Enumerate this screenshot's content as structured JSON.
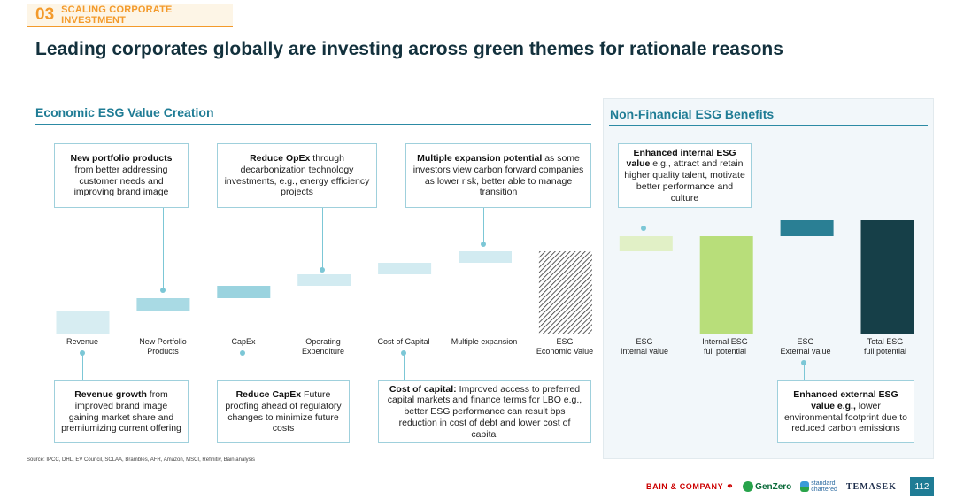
{
  "header": {
    "section_number": "03",
    "section_label": "SCALING CORPORATE INVESTMENT",
    "title": "Leading corporates globally are investing across green themes for rationale reasons"
  },
  "left_panel": {
    "heading": "Economic ESG Value Creation"
  },
  "right_panel": {
    "heading": "Non-Financial ESG Benefits"
  },
  "callouts_top": [
    {
      "bold": "New portfolio products",
      "text": " from better addressing customer needs and improving brand image"
    },
    {
      "bold": "Reduce OpEx",
      "text": " through decarbonization technology investments, e.g., energy efficiency projects"
    },
    {
      "bold": "Multiple expansion potential",
      "text": " as some investors view carbon forward companies as lower risk, better able to manage transition"
    },
    {
      "bold": "Enhanced internal ESG value",
      "text": " e.g., attract and retain higher quality talent, motivate better performance and culture"
    }
  ],
  "callouts_bottom": [
    {
      "bold": "Revenue growth",
      "text": " from improved brand image gaining market share and premiumizing current offering"
    },
    {
      "bold": "Reduce CapEx",
      "text": " Future proofing ahead of regulatory changes to minimize future costs"
    },
    {
      "bold": "Cost of capital:",
      "text": " Improved access to preferred capital markets and finance terms for LBO e.g., better ESG performance can result bps reduction in cost of debt and lower cost of capital"
    },
    {
      "bold": "Enhanced external ESG value e.g.,",
      "text": " lower environmental footprint due to reduced carbon emissions"
    }
  ],
  "chart_data": {
    "type": "bar",
    "subtype": "waterfall",
    "categories": [
      "Revenue",
      "New Portfolio Products",
      "CapEx",
      "Operating Expenditure",
      "Cost of Capital",
      "Multiple expansion",
      "ESG Economic Value",
      "ESG Internal value",
      "Internal ESG full potential",
      "ESG External value",
      "Total ESG full potential"
    ],
    "category_lines": [
      [
        "Revenue"
      ],
      [
        "New Portfolio",
        "Products"
      ],
      [
        "CapEx"
      ],
      [
        "Operating",
        "Expenditure"
      ],
      [
        "Cost of Capital"
      ],
      [
        "Multiple expansion"
      ],
      [
        "ESG",
        "Economic Value"
      ],
      [
        "ESG",
        "Internal value"
      ],
      [
        "Internal ESG",
        "full potential"
      ],
      [
        "ESG",
        "External value"
      ],
      [
        "Total ESG",
        "full potential"
      ]
    ],
    "bars": [
      {
        "start": 0,
        "end": 26,
        "color": "#d7edf2",
        "pattern": "none"
      },
      {
        "start": 26,
        "end": 40,
        "color": "#a9dae4",
        "pattern": "none"
      },
      {
        "start": 40,
        "end": 54,
        "color": "#9ad3df",
        "pattern": "none"
      },
      {
        "start": 54,
        "end": 67,
        "color": "#d2ebf1",
        "pattern": "none"
      },
      {
        "start": 67,
        "end": 80,
        "color": "#d2ebf1",
        "pattern": "none"
      },
      {
        "start": 80,
        "end": 93,
        "color": "#d2ebf1",
        "pattern": "none"
      },
      {
        "start": 0,
        "end": 93,
        "color": "#333333",
        "pattern": "hatch"
      },
      {
        "start": 93,
        "end": 110,
        "color": "#e1f0c6",
        "pattern": "none"
      },
      {
        "start": 0,
        "end": 110,
        "color": "#b8de7a",
        "pattern": "none"
      },
      {
        "start": 110,
        "end": 128,
        "color": "#2a7f94",
        "pattern": "none"
      },
      {
        "start": 0,
        "end": 128,
        "color": "#163f48",
        "pattern": "none"
      }
    ],
    "ylim": [
      0,
      128
    ],
    "grid": false,
    "legend": "none"
  },
  "source_note": "Source: IPCC, DHL, EV Council, SCLAA, Brambles, AFR, Amazon, MSCI, Refinitiv, Bain analysis",
  "footer": {
    "logo_bain": "BAIN & COMPANY",
    "logo_genzero": "GenZero",
    "logo_sc_line1": "standard",
    "logo_sc_line2": "chartered",
    "logo_temasek": "TEMASEK",
    "page_number": "112"
  }
}
